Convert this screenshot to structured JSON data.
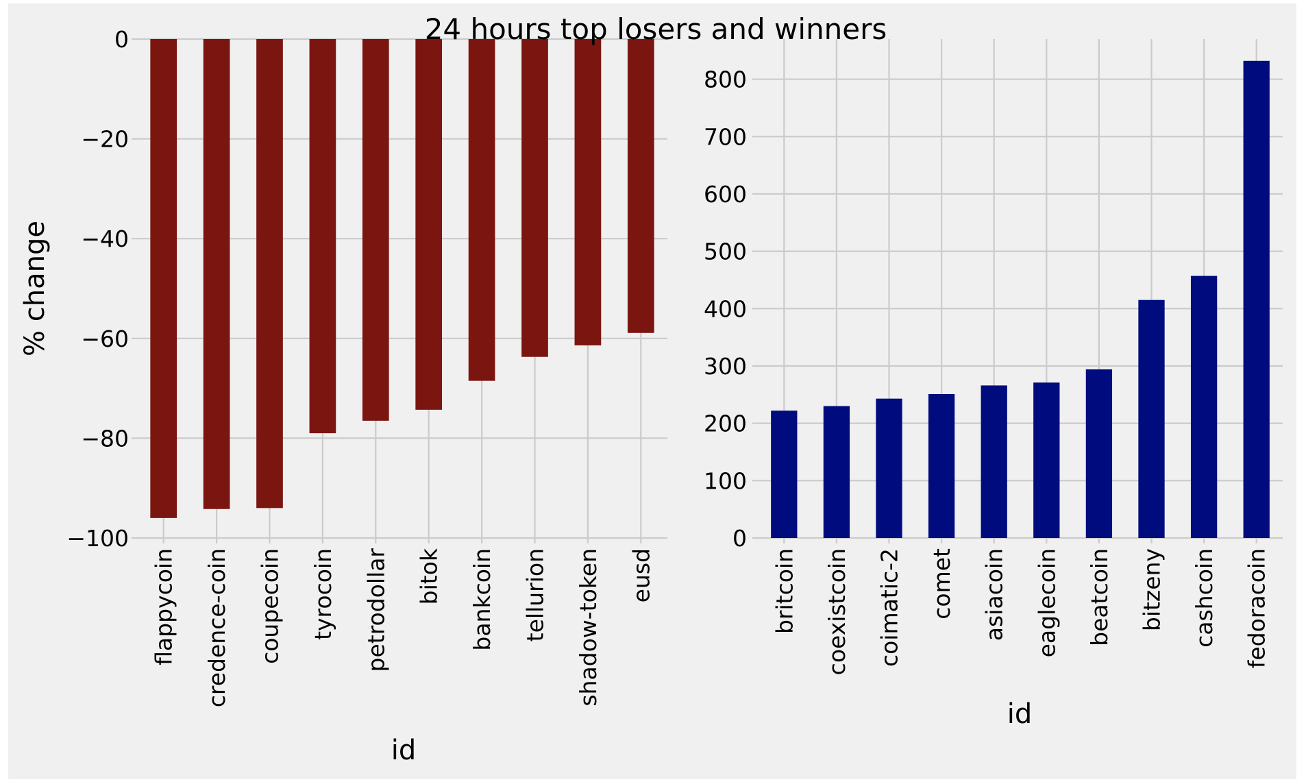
{
  "figure": {
    "title": "24 hours top losers and winners",
    "background": "#f0f0f0",
    "grid_color": "#cbcbcb"
  },
  "chart_data": [
    {
      "type": "bar",
      "panel": "left",
      "title": "",
      "xlabel": "id",
      "ylabel": "% change",
      "categories": [
        "flappycoin",
        "credence-coin",
        "coupecoin",
        "tyrocoin",
        "petrodollar",
        "bitok",
        "bankcoin",
        "tellurion",
        "shadow-token",
        "eusd"
      ],
      "values": [
        -96,
        -94.2,
        -94,
        -79,
        -76.5,
        -74.3,
        -68.5,
        -63.7,
        -61.4,
        -58.9
      ],
      "ylim": [
        -100,
        0
      ],
      "yticks": [
        0,
        -20,
        -40,
        -60,
        -80,
        -100
      ],
      "ytick_labels": [
        "0",
        "−20",
        "−40",
        "−60",
        "−80",
        "−100"
      ],
      "bar_color": "#7b1510",
      "grid": true
    },
    {
      "type": "bar",
      "panel": "right",
      "title": "",
      "xlabel": "id",
      "ylabel": "",
      "categories": [
        "britcoin",
        "coexistcoin",
        "coimatic-2",
        "comet",
        "asiacoin",
        "eaglecoin",
        "beatcoin",
        "bitzeny",
        "cashcoin",
        "fedoracoin"
      ],
      "values": [
        222,
        230,
        243,
        251,
        266,
        271,
        294,
        415,
        457,
        832
      ],
      "ylim": [
        0,
        870
      ],
      "yticks": [
        0,
        100,
        200,
        300,
        400,
        500,
        600,
        700,
        800
      ],
      "ytick_labels": [
        "0",
        "100",
        "200",
        "300",
        "400",
        "500",
        "600",
        "700",
        "800"
      ],
      "bar_color": "#000c7e",
      "grid": true
    }
  ]
}
